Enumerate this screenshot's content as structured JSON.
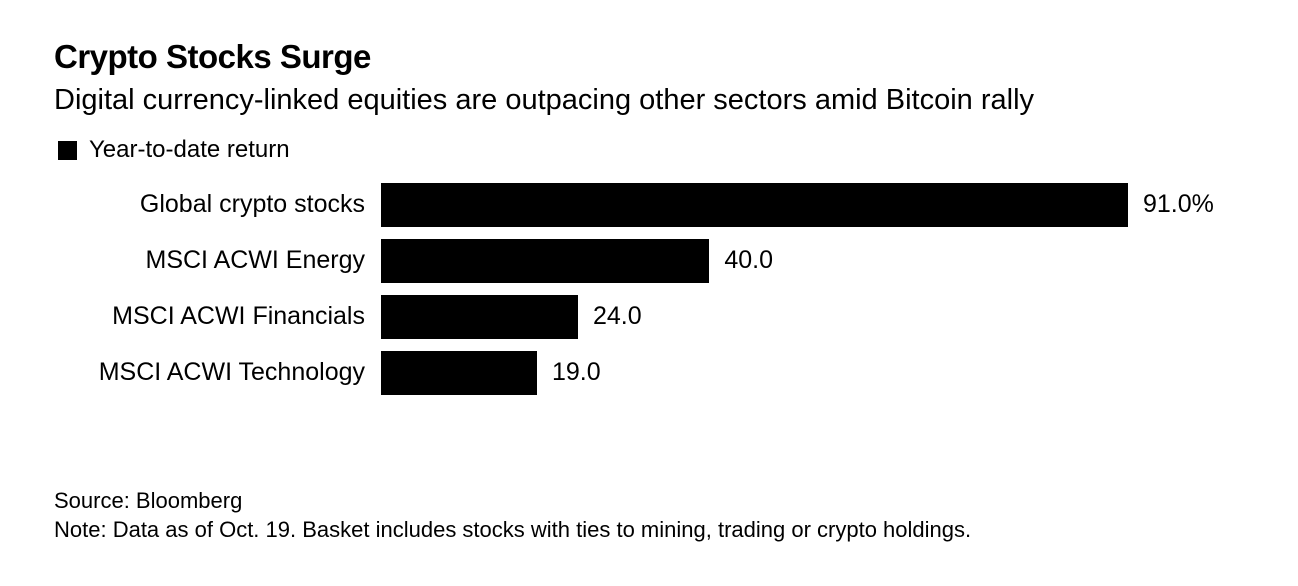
{
  "chart_data": {
    "type": "bar",
    "orientation": "horizontal",
    "title": "Crypto Stocks Surge",
    "subtitle": "Digital currency-linked equities are outpacing other sectors amid Bitcoin rally",
    "legend": [
      "Year-to-date return"
    ],
    "categories": [
      "Global crypto stocks",
      "MSCI ACWI Energy",
      "MSCI ACWI Financials",
      "MSCI ACWI Technology"
    ],
    "values": [
      91.0,
      40.0,
      24.0,
      19.0
    ],
    "value_labels": [
      "91.0%",
      "40.0",
      "24.0",
      "19.0"
    ],
    "xlim": [
      0,
      91
    ],
    "bar_color": "#000000",
    "source": "Source: Bloomberg",
    "note": "Note: Data as of Oct. 19. Basket includes stocks with ties to mining, trading or crypto holdings."
  }
}
